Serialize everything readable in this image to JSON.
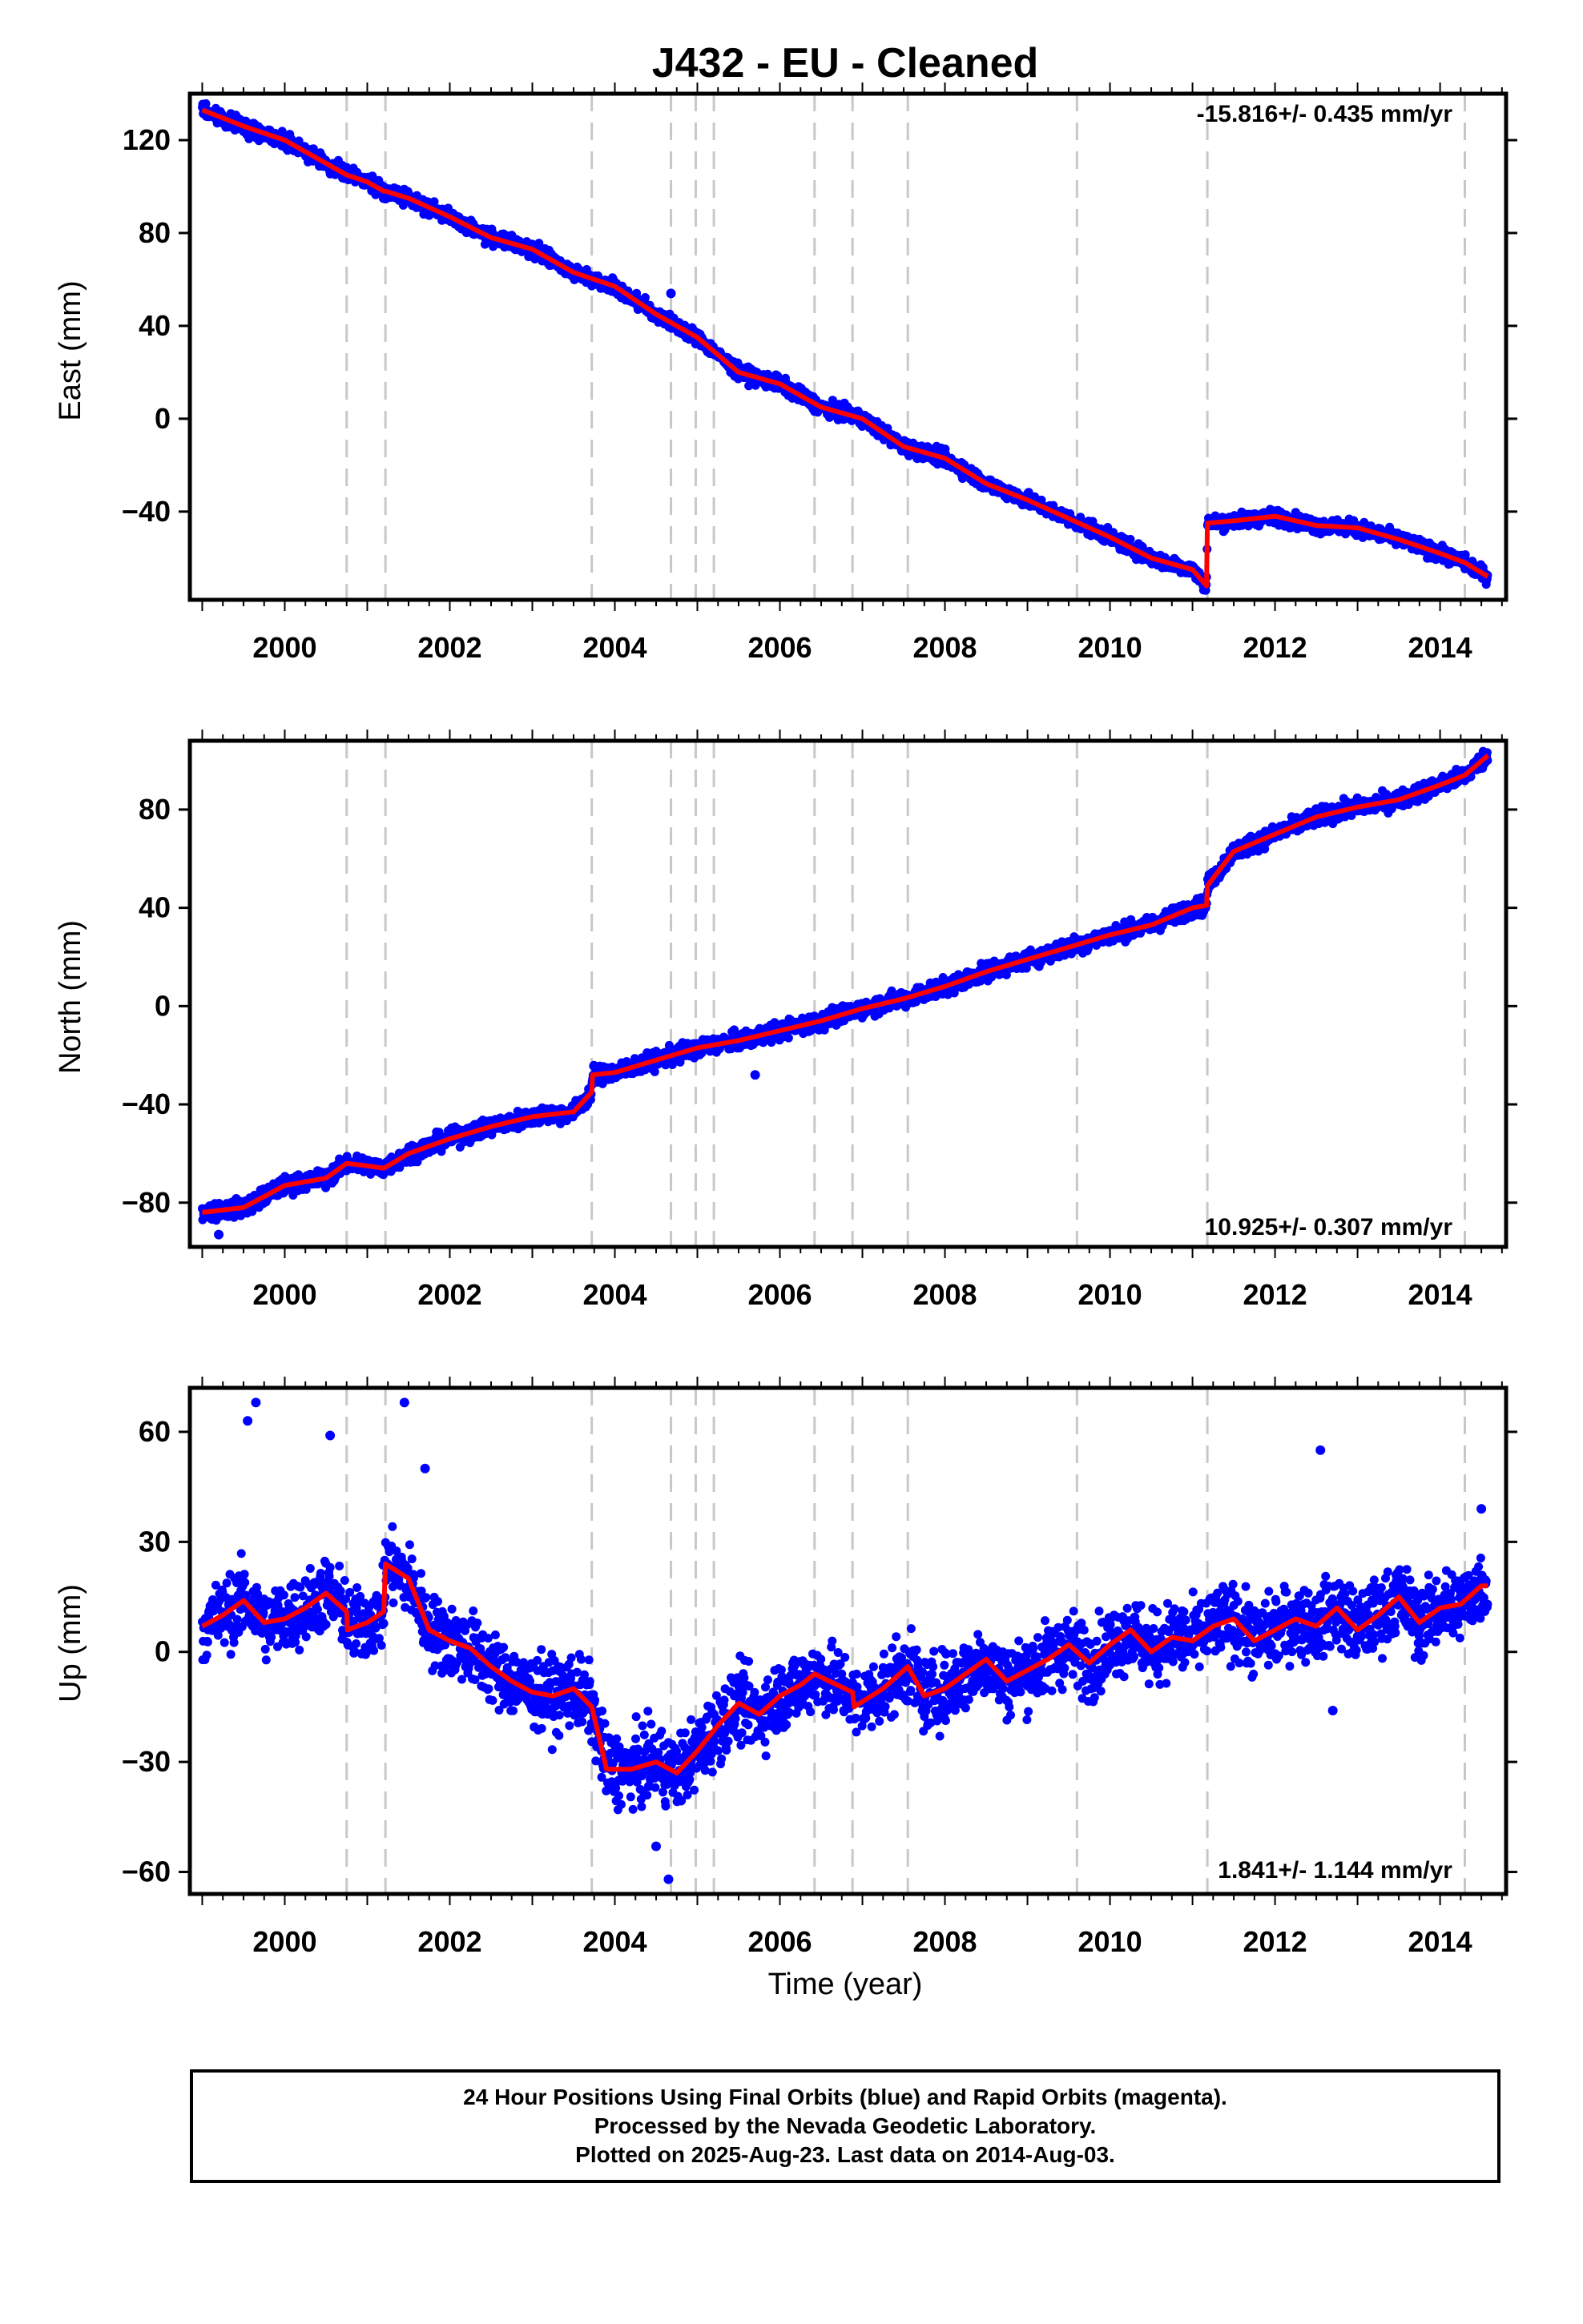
{
  "colors": {
    "final_orbit_points": "#0000ff",
    "trend_line": "#ff0000",
    "event_lines": "#c8c8c8",
    "axes": "#000000"
  },
  "chart_data": [
    {
      "type": "scatter",
      "title": "J432  - EU - Cleaned",
      "xlabel": "",
      "ylabel": "East (mm)",
      "xlim": [
        1998.85,
        2014.8
      ],
      "ylim": [
        -78,
        140
      ],
      "yticks": [
        120,
        80,
        40,
        0,
        -40
      ],
      "xticks": [
        2000,
        2002,
        2004,
        2006,
        2008,
        2010,
        2012,
        2014
      ],
      "grid": false,
      "annotation": "-15.816+/- 0.435 mm/yr",
      "annotation_position": "top-right",
      "event_lines": [
        2000.75,
        2001.22,
        2003.72,
        2004.68,
        2004.98,
        2005.2,
        2006.42,
        2006.88,
        2007.55,
        2009.6,
        2011.18,
        2014.3
      ],
      "noise": 2.2,
      "series": [
        {
          "kind": "points",
          "x": [
            1999.0,
            1999.5,
            2000.0,
            2000.5,
            2000.75,
            2001.0,
            2001.2,
            2001.22,
            2001.5,
            2002.0,
            2002.5,
            2003.0,
            2003.5,
            2004.0,
            2004.5,
            2005.0,
            2005.5,
            2006.0,
            2006.5,
            2007.0,
            2007.5,
            2008.0,
            2008.5,
            2009.0,
            2009.5,
            2010.0,
            2010.5,
            2011.0,
            2011.17,
            2011.18,
            2011.5,
            2012.0,
            2012.5,
            2013.0,
            2013.5,
            2014.0,
            2014.3,
            2014.58
          ],
          "y": [
            133,
            126,
            120,
            110,
            105,
            102,
            98,
            98,
            95,
            87,
            78,
            73,
            63,
            57,
            45,
            35,
            20,
            15,
            5,
            0,
            -12,
            -17,
            -28,
            -35,
            -43,
            -51,
            -60,
            -65,
            -72,
            -45,
            -44,
            -42,
            -46,
            -47,
            -52,
            -58,
            -62,
            -68
          ]
        },
        {
          "kind": "trend",
          "x": [
            1999.0,
            1999.5,
            2000.0,
            2000.5,
            2000.75,
            2001.0,
            2001.2,
            2001.22,
            2001.5,
            2002.0,
            2002.5,
            2003.0,
            2003.5,
            2004.0,
            2004.5,
            2005.0,
            2005.5,
            2006.0,
            2006.5,
            2007.0,
            2007.5,
            2008.0,
            2008.5,
            2009.0,
            2009.5,
            2010.0,
            2010.5,
            2011.0,
            2011.17,
            2011.18,
            2011.5,
            2012.0,
            2012.5,
            2013.0,
            2013.5,
            2014.0,
            2014.3,
            2014.58
          ],
          "y": [
            133,
            126,
            120,
            110,
            105,
            102,
            98,
            98,
            95,
            87,
            78,
            73,
            63,
            57,
            45,
            35,
            20,
            15,
            5,
            0,
            -12,
            -17,
            -28,
            -35,
            -43,
            -51,
            -60,
            -65,
            -72,
            -45,
            -44,
            -42,
            -46,
            -47,
            -52,
            -58,
            -62,
            -68
          ]
        }
      ],
      "outliers": [
        [
          2004.68,
          54
        ],
        [
          2008.2,
          -19
        ]
      ]
    },
    {
      "type": "scatter",
      "title": "",
      "xlabel": "",
      "ylabel": "North (mm)",
      "xlim": [
        1998.85,
        2014.8
      ],
      "ylim": [
        -98,
        108
      ],
      "yticks": [
        80,
        40,
        0,
        -40,
        -80
      ],
      "xticks": [
        2000,
        2002,
        2004,
        2006,
        2008,
        2010,
        2012,
        2014
      ],
      "grid": false,
      "annotation": "10.925+/- 0.307 mm/yr",
      "annotation_position": "bottom-right",
      "event_lines": [
        2000.75,
        2001.22,
        2003.72,
        2004.68,
        2004.98,
        2005.2,
        2006.42,
        2006.88,
        2007.55,
        2009.6,
        2011.18,
        2014.3
      ],
      "noise": 2.5,
      "series": [
        {
          "kind": "points",
          "x": [
            1999.0,
            1999.5,
            2000.0,
            2000.5,
            2000.75,
            2001.0,
            2001.2,
            2001.5,
            2002.0,
            2002.5,
            2003.0,
            2003.5,
            2003.72,
            2003.73,
            2004.0,
            2004.5,
            2005.0,
            2005.5,
            2006.0,
            2006.5,
            2007.0,
            2007.5,
            2008.0,
            2008.5,
            2009.0,
            2009.5,
            2010.0,
            2010.5,
            2011.0,
            2011.17,
            2011.18,
            2011.5,
            2012.0,
            2012.5,
            2013.0,
            2013.5,
            2014.0,
            2014.3,
            2014.58
          ],
          "y": [
            -84,
            -82,
            -73,
            -70,
            -64,
            -65,
            -66,
            -60,
            -54,
            -49,
            -45,
            -43,
            -35,
            -28,
            -27,
            -22,
            -17,
            -14,
            -10,
            -6,
            -1,
            3,
            8,
            14,
            19,
            24,
            29,
            33,
            40,
            41,
            49,
            63,
            70,
            77,
            81,
            84,
            90,
            94,
            102
          ]
        },
        {
          "kind": "trend",
          "x": [
            1999.0,
            1999.5,
            2000.0,
            2000.5,
            2000.75,
            2001.0,
            2001.2,
            2001.5,
            2002.0,
            2002.5,
            2003.0,
            2003.5,
            2003.72,
            2003.73,
            2004.0,
            2004.5,
            2005.0,
            2005.5,
            2006.0,
            2006.5,
            2007.0,
            2007.5,
            2008.0,
            2008.5,
            2009.0,
            2009.5,
            2010.0,
            2010.5,
            2011.0,
            2011.17,
            2011.18,
            2011.5,
            2012.0,
            2012.5,
            2013.0,
            2013.5,
            2014.0,
            2014.3,
            2014.58
          ],
          "y": [
            -84,
            -82,
            -73,
            -70,
            -64,
            -65,
            -66,
            -60,
            -54,
            -49,
            -45,
            -43,
            -35,
            -28,
            -27,
            -22,
            -17,
            -14,
            -10,
            -6,
            -1,
            3,
            8,
            14,
            19,
            24,
            29,
            33,
            40,
            41,
            49,
            63,
            70,
            77,
            81,
            84,
            90,
            94,
            102
          ]
        }
      ],
      "outliers": [
        [
          2005.7,
          -28
        ],
        [
          1999.2,
          -93
        ]
      ]
    },
    {
      "type": "scatter",
      "title": "",
      "xlabel": "Time (year)",
      "ylabel": "Up (mm)",
      "xlim": [
        1998.85,
        2014.8
      ],
      "ylim": [
        -66,
        72
      ],
      "yticks": [
        60,
        30,
        0,
        -30,
        -60
      ],
      "xticks": [
        2000,
        2002,
        2004,
        2006,
        2008,
        2010,
        2012,
        2014
      ],
      "grid": false,
      "annotation": "1.841+/- 1.144 mm/yr",
      "annotation_position": "bottom-right",
      "event_lines": [
        2000.75,
        2001.22,
        2003.72,
        2004.68,
        2004.98,
        2005.2,
        2006.42,
        2006.88,
        2007.55,
        2009.6,
        2011.18,
        2014.3
      ],
      "noise": 7.0,
      "series": [
        {
          "kind": "points",
          "x": [
            1999.0,
            1999.25,
            1999.5,
            1999.75,
            2000.0,
            2000.25,
            2000.5,
            2000.75,
            2000.76,
            2001.0,
            2001.2,
            2001.22,
            2001.5,
            2001.75,
            2002.0,
            2002.25,
            2002.5,
            2002.75,
            2003.0,
            2003.25,
            2003.5,
            2003.72,
            2003.9,
            2004.2,
            2004.5,
            2004.75,
            2005.0,
            2005.25,
            2005.5,
            2005.75,
            2006.0,
            2006.25,
            2006.42,
            2006.6,
            2006.88,
            2006.9,
            2007.25,
            2007.55,
            2007.75,
            2008.0,
            2008.25,
            2008.5,
            2008.75,
            2009.0,
            2009.25,
            2009.5,
            2009.75,
            2010.0,
            2010.25,
            2010.5,
            2010.75,
            2011.0,
            2011.25,
            2011.5,
            2011.75,
            2012.0,
            2012.25,
            2012.5,
            2012.75,
            2013.0,
            2013.25,
            2013.5,
            2013.75,
            2014.0,
            2014.25,
            2014.5,
            2014.58
          ],
          "y": [
            7,
            10,
            14,
            8,
            9,
            12,
            16,
            11,
            6,
            8,
            11,
            24,
            20,
            6,
            3,
            1,
            -4,
            -8,
            -11,
            -12,
            -10,
            -15,
            -32,
            -32,
            -30,
            -33,
            -27,
            -20,
            -14,
            -17,
            -12,
            -9,
            -6,
            -8,
            -11,
            -15,
            -10,
            -4,
            -12,
            -10,
            -6,
            -2,
            -8,
            -5,
            -2,
            2,
            -3,
            2,
            6,
            0,
            4,
            3,
            7,
            9,
            3,
            6,
            9,
            7,
            12,
            6,
            10,
            15,
            8,
            12,
            13,
            18,
            18
          ]
        },
        {
          "kind": "trend",
          "x": [
            1999.0,
            1999.25,
            1999.5,
            1999.75,
            2000.0,
            2000.25,
            2000.5,
            2000.75,
            2000.76,
            2001.0,
            2001.2,
            2001.22,
            2001.5,
            2001.75,
            2002.0,
            2002.25,
            2002.5,
            2002.75,
            2003.0,
            2003.25,
            2003.5,
            2003.72,
            2003.9,
            2004.2,
            2004.5,
            2004.75,
            2005.0,
            2005.25,
            2005.5,
            2005.75,
            2006.0,
            2006.25,
            2006.42,
            2006.6,
            2006.88,
            2006.9,
            2007.25,
            2007.55,
            2007.75,
            2008.0,
            2008.25,
            2008.5,
            2008.75,
            2009.0,
            2009.25,
            2009.5,
            2009.75,
            2010.0,
            2010.25,
            2010.5,
            2010.75,
            2011.0,
            2011.25,
            2011.5,
            2011.75,
            2012.0,
            2012.25,
            2012.5,
            2012.75,
            2013.0,
            2013.25,
            2013.5,
            2013.75,
            2014.0,
            2014.25,
            2014.5,
            2014.58
          ],
          "y": [
            7,
            10,
            14,
            8,
            9,
            12,
            16,
            11,
            6,
            8,
            11,
            24,
            20,
            6,
            3,
            1,
            -4,
            -8,
            -11,
            -12,
            -10,
            -15,
            -32,
            -32,
            -30,
            -33,
            -27,
            -20,
            -14,
            -17,
            -12,
            -9,
            -6,
            -8,
            -11,
            -15,
            -10,
            -4,
            -12,
            -10,
            -6,
            -2,
            -8,
            -5,
            -2,
            2,
            -3,
            2,
            6,
            0,
            4,
            3,
            7,
            9,
            3,
            6,
            9,
            7,
            12,
            6,
            10,
            15,
            8,
            12,
            13,
            18,
            18
          ]
        }
      ],
      "outliers": [
        [
          1999.55,
          63
        ],
        [
          1999.65,
          68
        ],
        [
          2000.55,
          59
        ],
        [
          2001.45,
          68
        ],
        [
          2001.7,
          50
        ],
        [
          2012.55,
          55
        ],
        [
          2012.7,
          -16
        ],
        [
          2004.65,
          -62
        ],
        [
          2004.5,
          -53
        ],
        [
          2014.5,
          39
        ]
      ]
    }
  ],
  "caption": {
    "line1": "24 Hour Positions Using Final Orbits (blue) and Rapid Orbits (magenta).",
    "line2": "Processed by the Nevada Geodetic Laboratory.",
    "line3": "Plotted on 2025-Aug-23. Last data on 2014-Aug-03."
  }
}
